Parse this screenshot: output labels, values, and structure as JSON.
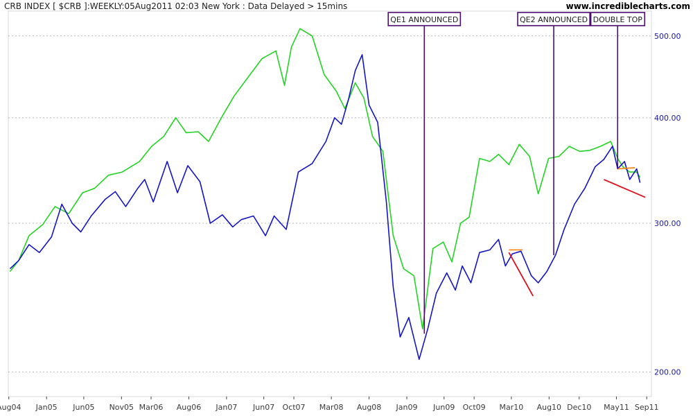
{
  "header": {
    "title": "CRB INDEX [ $CRB ]:WEEKLY:05Aug2011 02:03 New York  : Data Delayed > 15mins",
    "site": "www.incrediblecharts.com"
  },
  "colors": {
    "crb": "#1414c8",
    "comparison": "#22d422",
    "annotation_line": "#4b0c6e",
    "trend_red": "#e0101a",
    "trend_orange": "#ff8a1e",
    "grid": "#b8b8b8"
  },
  "chart_data": {
    "type": "line",
    "x_axis": {
      "ticks": [
        "Aug04",
        "Jan05",
        "Jun05",
        "Nov05",
        "Mar06",
        "Aug06",
        "Jan07",
        "Jun07",
        "Oct07",
        "Mar08",
        "Aug08",
        "Jan09",
        "Jun09",
        "Oct09",
        "Mar10",
        "Aug10",
        "Dec10",
        "May11",
        "Sep11"
      ],
      "range": [
        "2004-07-30",
        "2011-09-20"
      ]
    },
    "y_axis": {
      "scale": "log",
      "ticks": [
        "200.00",
        "300.00",
        "400.00",
        "500.00"
      ],
      "range": [
        187,
        535
      ],
      "position": "right"
    },
    "grid": true,
    "series": [
      {
        "name": "",
        "color": "#1414c8",
        "points": [
          [
            "2004-08-06",
            265
          ],
          [
            "2004-09-10",
            271
          ],
          [
            "2004-10-22",
            283
          ],
          [
            "2004-12-03",
            277
          ],
          [
            "2005-01-21",
            289
          ],
          [
            "2005-03-04",
            316
          ],
          [
            "2005-04-15",
            300
          ],
          [
            "2005-05-20",
            293
          ],
          [
            "2005-07-01",
            306
          ],
          [
            "2005-08-26",
            320
          ],
          [
            "2005-10-07",
            327
          ],
          [
            "2005-11-18",
            314
          ],
          [
            "2006-01-06",
            330
          ],
          [
            "2006-02-03",
            338
          ],
          [
            "2006-03-10",
            318
          ],
          [
            "2006-05-05",
            355
          ],
          [
            "2006-06-16",
            326
          ],
          [
            "2006-07-28",
            351
          ],
          [
            "2006-09-15",
            336
          ],
          [
            "2006-10-27",
            300
          ],
          [
            "2006-12-15",
            307
          ],
          [
            "2007-01-26",
            297
          ],
          [
            "2007-03-02",
            303
          ],
          [
            "2007-04-20",
            306
          ],
          [
            "2007-06-08",
            290
          ],
          [
            "2007-07-13",
            306
          ],
          [
            "2007-08-31",
            295
          ],
          [
            "2007-10-19",
            345
          ],
          [
            "2007-12-14",
            353
          ],
          [
            "2008-02-08",
            375
          ],
          [
            "2008-03-14",
            400
          ],
          [
            "2008-04-11",
            393
          ],
          [
            "2008-05-09",
            420
          ],
          [
            "2008-06-06",
            455
          ],
          [
            "2008-07-04",
            475
          ],
          [
            "2008-08-01",
            414
          ],
          [
            "2008-09-05",
            395
          ],
          [
            "2008-10-10",
            318
          ],
          [
            "2008-11-07",
            252
          ],
          [
            "2008-12-05",
            220
          ],
          [
            "2009-01-09",
            232
          ],
          [
            "2009-02-20",
            207
          ],
          [
            "2009-03-27",
            225
          ],
          [
            "2009-05-01",
            248
          ],
          [
            "2009-06-12",
            262
          ],
          [
            "2009-07-17",
            250
          ],
          [
            "2009-08-14",
            267
          ],
          [
            "2009-09-18",
            255
          ],
          [
            "2009-10-23",
            277
          ],
          [
            "2009-12-04",
            279
          ],
          [
            "2010-01-08",
            287
          ],
          [
            "2010-02-05",
            267
          ],
          [
            "2010-03-05",
            276
          ],
          [
            "2010-04-09",
            278
          ],
          [
            "2010-05-21",
            260
          ],
          [
            "2010-06-18",
            255
          ],
          [
            "2010-07-23",
            263
          ],
          [
            "2010-08-27",
            275
          ],
          [
            "2010-10-01",
            295
          ],
          [
            "2010-11-12",
            316
          ],
          [
            "2010-12-24",
            330
          ],
          [
            "2011-02-04",
            350
          ],
          [
            "2011-03-11",
            357
          ],
          [
            "2011-04-15",
            370
          ],
          [
            "2011-05-06",
            348
          ],
          [
            "2011-06-03",
            355
          ],
          [
            "2011-06-24",
            338
          ],
          [
            "2011-07-22",
            348
          ],
          [
            "2011-08-05",
            335
          ]
        ]
      },
      {
        "name": "",
        "color": "#22d422",
        "points": [
          [
            "2004-08-06",
            263
          ],
          [
            "2004-09-10",
            271
          ],
          [
            "2004-10-22",
            290
          ],
          [
            "2004-12-17",
            299
          ],
          [
            "2005-02-04",
            314
          ],
          [
            "2005-04-01",
            308
          ],
          [
            "2005-05-27",
            326
          ],
          [
            "2005-07-15",
            330
          ],
          [
            "2005-09-09",
            342
          ],
          [
            "2005-11-04",
            345
          ],
          [
            "2006-01-13",
            355
          ],
          [
            "2006-03-03",
            370
          ],
          [
            "2006-04-21",
            380
          ],
          [
            "2006-06-09",
            400
          ],
          [
            "2006-07-21",
            384
          ],
          [
            "2006-09-08",
            385
          ],
          [
            "2006-10-20",
            375
          ],
          [
            "2006-12-15",
            402
          ],
          [
            "2007-02-02",
            425
          ],
          [
            "2007-03-30",
            447
          ],
          [
            "2007-05-25",
            470
          ],
          [
            "2007-07-20",
            480
          ],
          [
            "2007-08-24",
            437
          ],
          [
            "2007-09-21",
            485
          ],
          [
            "2007-10-26",
            510
          ],
          [
            "2007-12-14",
            500
          ],
          [
            "2008-02-01",
            450
          ],
          [
            "2008-03-21",
            430
          ],
          [
            "2008-04-25",
            410
          ],
          [
            "2008-06-06",
            440
          ],
          [
            "2008-07-11",
            422
          ],
          [
            "2008-08-15",
            380
          ],
          [
            "2008-09-26",
            365
          ],
          [
            "2008-11-07",
            290
          ],
          [
            "2008-12-19",
            265
          ],
          [
            "2009-01-30",
            260
          ],
          [
            "2009-03-06",
            225
          ],
          [
            "2009-04-17",
            280
          ],
          [
            "2009-05-29",
            285
          ],
          [
            "2009-07-03",
            270
          ],
          [
            "2009-08-07",
            300
          ],
          [
            "2009-09-11",
            305
          ],
          [
            "2009-10-23",
            358
          ],
          [
            "2009-12-04",
            355
          ],
          [
            "2010-01-08",
            362
          ],
          [
            "2010-02-19",
            352
          ],
          [
            "2010-04-02",
            372
          ],
          [
            "2010-05-14",
            360
          ],
          [
            "2010-06-18",
            325
          ],
          [
            "2010-07-30",
            358
          ],
          [
            "2010-09-10",
            360
          ],
          [
            "2010-10-22",
            370
          ],
          [
            "2010-12-03",
            365
          ],
          [
            "2011-01-14",
            366
          ],
          [
            "2011-02-25",
            370
          ],
          [
            "2011-04-08",
            375
          ],
          [
            "2011-05-06",
            358
          ],
          [
            "2011-05-27",
            350
          ],
          [
            "2011-06-24",
            345
          ],
          [
            "2011-07-22",
            345
          ],
          [
            "2011-08-05",
            340
          ]
        ]
      }
    ],
    "annotations": [
      {
        "label": "QE1 ANNOUNCED",
        "date": "2009-03-13",
        "value": 222
      },
      {
        "label": "QE2 ANNOUNCED",
        "date": "2010-08-20",
        "value": 275
      },
      {
        "label": "DOUBLE TOP",
        "date": "2011-05-06",
        "value": 348
      }
    ],
    "trendlines": [
      {
        "color": "#ff8a1e",
        "from": [
          "2010-02-19",
          279
        ],
        "to": [
          "2010-04-16",
          279
        ]
      },
      {
        "color": "#e0101a",
        "from": [
          "2010-02-19",
          277
        ],
        "to": [
          "2010-05-28",
          246
        ]
      },
      {
        "color": "#ff8a1e",
        "from": [
          "2011-05-06",
          348
        ],
        "to": [
          "2011-07-15",
          349
        ]
      },
      {
        "color": "#e0101a",
        "from": [
          "2011-03-11",
          338
        ],
        "to": [
          "2011-08-26",
          322
        ]
      }
    ]
  }
}
